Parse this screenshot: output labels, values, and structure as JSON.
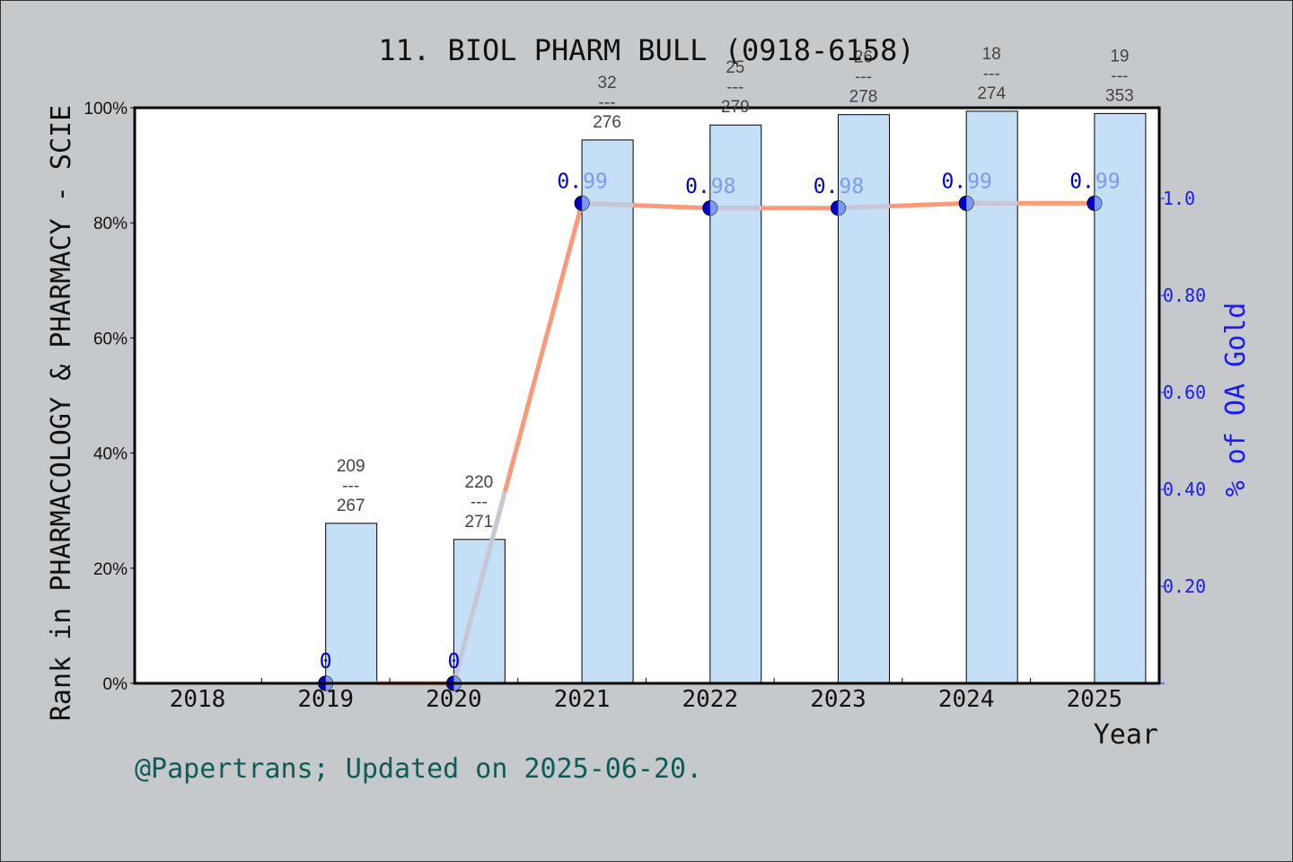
{
  "chart_data": {
    "type": "bar",
    "title": "11. BIOL PHARM BULL (0918-6158)",
    "xlabel": "Year",
    "ylabel": "Rank in PHARMACOLOGY & PHARMACY - SCIE",
    "y2label": "% of OA Gold",
    "categories": [
      "2018",
      "2019",
      "2020",
      "2021",
      "2022",
      "2023",
      "2024",
      "2025"
    ],
    "ylim": [
      0,
      100
    ],
    "y_ticks": [
      "0%",
      "20%",
      "40%",
      "60%",
      "80%",
      "100%"
    ],
    "y2lim": [
      0,
      1.187
    ],
    "y2_ticks": [
      "0.20",
      "0.40",
      "0.60",
      "0.80",
      "1.0"
    ],
    "series": [
      {
        "name": "Rank percentile (bar)",
        "type": "bar",
        "values": [
          null,
          27.8,
          25.0,
          94.4,
          97.0,
          98.8,
          99.4,
          99.0
        ],
        "labels": [
          null,
          "209\n---\n267",
          "220\n---\n271",
          "32\n---\n276",
          "25\n---\n279",
          "26\n---\n278",
          "18\n---\n274",
          "19\n---\n353"
        ],
        "color": "#c5dff6"
      },
      {
        "name": "% of OA Gold (line)",
        "type": "line",
        "axis": "right",
        "values": [
          null,
          0,
          0,
          0.99,
          0.98,
          0.98,
          0.99,
          0.99
        ],
        "labels": [
          null,
          "0",
          "0",
          "0.99",
          "0.98",
          "0.98",
          "0.99",
          "0.99"
        ],
        "color": "#fa9a78"
      }
    ],
    "grid": false,
    "legend": null
  },
  "text": {
    "title": "11. BIOL PHARM BULL (0918-6158)",
    "xlabel": "Year",
    "ylabel": "Rank in PHARMACOLOGY & PHARMACY - SCIE",
    "y2label": "% of OA Gold",
    "footer": "@Papertrans; Updated on 2025-06-20."
  },
  "colors": {
    "background": "#c6c9cc",
    "plot_bg": "#ffffff",
    "bar_fill": "#c5dff6",
    "line": "#fa9a78",
    "line_segment_light": "#c4c8d8",
    "marker": "#0000cc",
    "right_axis": "#1a1aff",
    "footer": "#0e5c55"
  }
}
